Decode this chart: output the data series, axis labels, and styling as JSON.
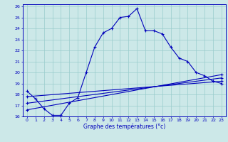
{
  "xlabel": "Graphe des températures (°c)",
  "bg_color": "#cce8e8",
  "grid_color": "#99cccc",
  "line_color": "#0000bb",
  "xlim": [
    -0.5,
    23.5
  ],
  "ylim": [
    16,
    26.2
  ],
  "yticks": [
    16,
    17,
    18,
    19,
    20,
    21,
    22,
    23,
    24,
    25,
    26
  ],
  "xticks": [
    0,
    1,
    2,
    3,
    4,
    5,
    6,
    7,
    8,
    9,
    10,
    11,
    12,
    13,
    14,
    15,
    16,
    17,
    18,
    19,
    20,
    21,
    22,
    23
  ],
  "main_x": [
    0,
    1,
    2,
    3,
    4,
    5,
    6,
    7,
    8,
    9,
    10,
    11,
    12,
    13,
    14,
    15,
    16,
    17,
    18,
    19,
    20,
    21,
    22,
    23
  ],
  "main_y": [
    18.3,
    17.6,
    16.7,
    16.1,
    16.1,
    17.2,
    17.7,
    20.0,
    22.3,
    23.6,
    24.0,
    25.0,
    25.1,
    25.8,
    23.8,
    23.8,
    23.5,
    22.3,
    21.3,
    21.0,
    20.0,
    19.7,
    19.2,
    19.0
  ],
  "line2_x": [
    0,
    23
  ],
  "line2_y": [
    17.8,
    19.2
  ],
  "line3_x": [
    0,
    23
  ],
  "line3_y": [
    17.2,
    19.5
  ],
  "line4_x": [
    0,
    23
  ],
  "line4_y": [
    16.6,
    19.8
  ]
}
